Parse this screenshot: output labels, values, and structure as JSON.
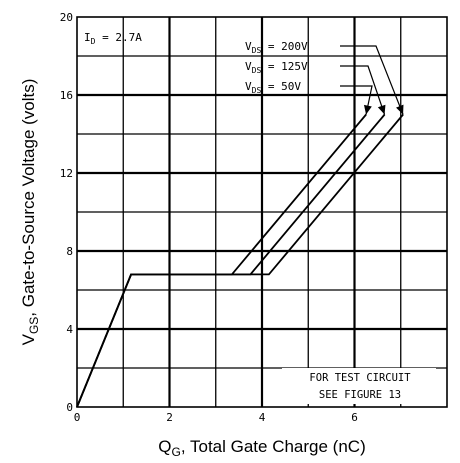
{
  "chart_data": {
    "type": "line",
    "xlabel_main": "Q",
    "xlabel_sub": "G",
    "xlabel_rest": ", Total Gate Charge (nC)",
    "ylabel_main": "V",
    "ylabel_sub": "GS",
    "ylabel_rest": ", Gate-to-Source Voltage (volts)",
    "xlim": [
      0,
      8
    ],
    "ylim": [
      0,
      20
    ],
    "x_ticks": [
      "0",
      "2",
      "4",
      "6"
    ],
    "y_ticks": [
      "0",
      "4",
      "8",
      "12",
      "16",
      "20"
    ],
    "grid": true,
    "condition": {
      "prefix": "I",
      "sub": "D",
      "rest": " = 2.7A"
    },
    "series": [
      {
        "name": "200V",
        "label_prefix": "V",
        "label_sub": "DS",
        "label_rest": " = 200V",
        "points": [
          [
            0,
            0
          ],
          [
            1.17,
            6.8
          ],
          [
            4.15,
            6.8
          ],
          [
            7.05,
            15.0
          ]
        ]
      },
      {
        "name": "125V",
        "label_prefix": "V",
        "label_sub": "DS",
        "label_rest": " = 125V",
        "points": [
          [
            0,
            0
          ],
          [
            1.17,
            6.8
          ],
          [
            3.75,
            6.8
          ],
          [
            6.65,
            15.0
          ]
        ]
      },
      {
        "name": "50V",
        "label_prefix": "V",
        "label_sub": "DS",
        "label_rest": " =  50V",
        "points": [
          [
            0,
            0
          ],
          [
            1.17,
            6.8
          ],
          [
            3.35,
            6.8
          ],
          [
            6.25,
            15.0
          ]
        ]
      }
    ],
    "note_line1": "FOR TEST CIRCUIT",
    "note_line2": "SEE FIGURE 13"
  }
}
